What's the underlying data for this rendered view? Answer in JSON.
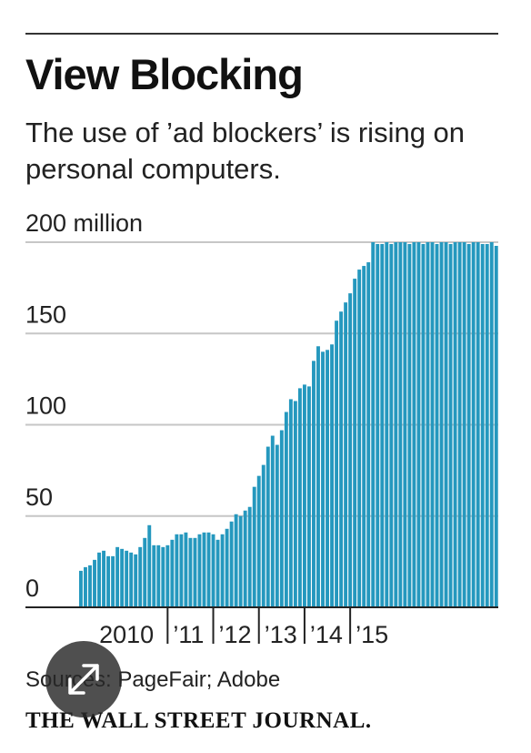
{
  "header": {
    "title": "View Blocking",
    "subtitle": "The use of ’ad blockers’ is rising on personal computers."
  },
  "footer": {
    "source": "Sources: PageFair; Adobe",
    "logo": "THE WALL STREET JOURNAL."
  },
  "expand_button": {
    "icon": "expand-arrows-icon"
  },
  "colors": {
    "bar": "#2598be",
    "grid": "#c6c6c6",
    "axis": "#222222",
    "text": "#222222"
  },
  "chart_data": {
    "type": "bar",
    "title": "View Blocking",
    "ylabel": "",
    "xlabel": "",
    "ylim": [
      0,
      200
    ],
    "y_ticks": [
      {
        "value": 0,
        "label": "0"
      },
      {
        "value": 50,
        "label": "50"
      },
      {
        "value": 100,
        "label": "100"
      },
      {
        "value": 150,
        "label": "150"
      },
      {
        "value": 200,
        "label": "200 million"
      }
    ],
    "x_ticks": [
      "2010",
      "’11",
      "’12",
      "’13",
      "’14",
      "’15"
    ],
    "grid": true,
    "bar_count": 92,
    "tick_at_bar": [
      10,
      19,
      29,
      39,
      49,
      59
    ],
    "values": [
      20,
      22,
      23,
      26,
      30,
      31,
      28,
      28,
      33,
      32,
      31,
      30,
      29,
      33,
      38,
      45,
      34,
      34,
      33,
      34,
      37,
      40,
      40,
      41,
      38,
      38,
      40,
      41,
      41,
      40,
      37,
      40,
      43,
      47,
      51,
      50,
      53,
      55,
      66,
      72,
      78,
      88,
      94,
      89,
      97,
      107,
      114,
      113,
      120,
      122,
      121,
      135,
      143,
      140,
      141,
      144,
      157,
      162,
      167,
      172,
      180,
      185,
      187,
      189,
      200,
      199,
      199,
      200,
      199,
      200,
      200,
      200,
      199,
      200,
      200,
      199,
      200,
      200,
      199,
      200,
      200,
      199,
      200,
      200,
      200,
      199,
      200,
      200,
      199,
      199,
      200,
      198
    ]
  }
}
